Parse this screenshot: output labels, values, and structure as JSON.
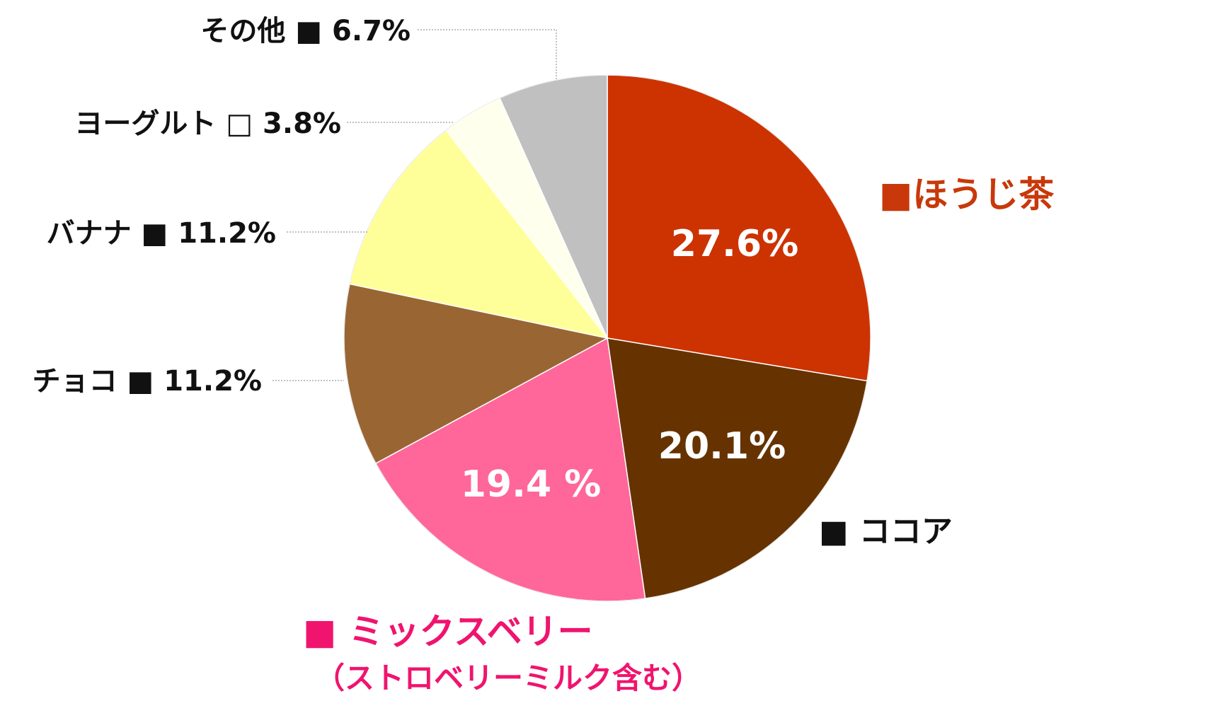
{
  "chart_data": {
    "type": "pie",
    "title": "",
    "start_angle_deg": 0,
    "direction": "clockwise",
    "slices": [
      {
        "name": "ほうじ茶",
        "label": "■ほうじ茶",
        "value": 27.6,
        "value_label": "27.6%",
        "color": "#CC3300",
        "label_color": "#C8380A"
      },
      {
        "name": "ココア",
        "label": "■ ココア",
        "value": 20.1,
        "value_label": "20.1%",
        "color": "#663300",
        "label_color": "#111111"
      },
      {
        "name": "ミックスベリー",
        "label": "■ ミックスベリー",
        "sublabel": "（ストロベリーミルク含む）",
        "value": 19.4,
        "value_label": "19.4 %",
        "color": "#FF6699",
        "label_color": "#F0146E"
      },
      {
        "name": "チョコ",
        "label": "チョコ ■ 11.2%",
        "value": 11.2,
        "value_label": "11.2%",
        "color": "#996633",
        "label_color": "#111111"
      },
      {
        "name": "バナナ",
        "label": "バナナ ■ 11.2%",
        "value": 11.2,
        "value_label": "11.2%",
        "color": "#FFFF99",
        "label_color": "#111111"
      },
      {
        "name": "ヨーグルト",
        "label": "ヨーグルト □ 3.8%",
        "value": 3.8,
        "value_label": "3.8%",
        "color": "#FFFFEE",
        "label_color": "#111111"
      },
      {
        "name": "その他",
        "label": "その他 ■ 6.7%",
        "value": 6.7,
        "value_label": "6.7%",
        "color": "#C0C0C0",
        "label_color": "#111111"
      }
    ],
    "legend": "callouts"
  }
}
